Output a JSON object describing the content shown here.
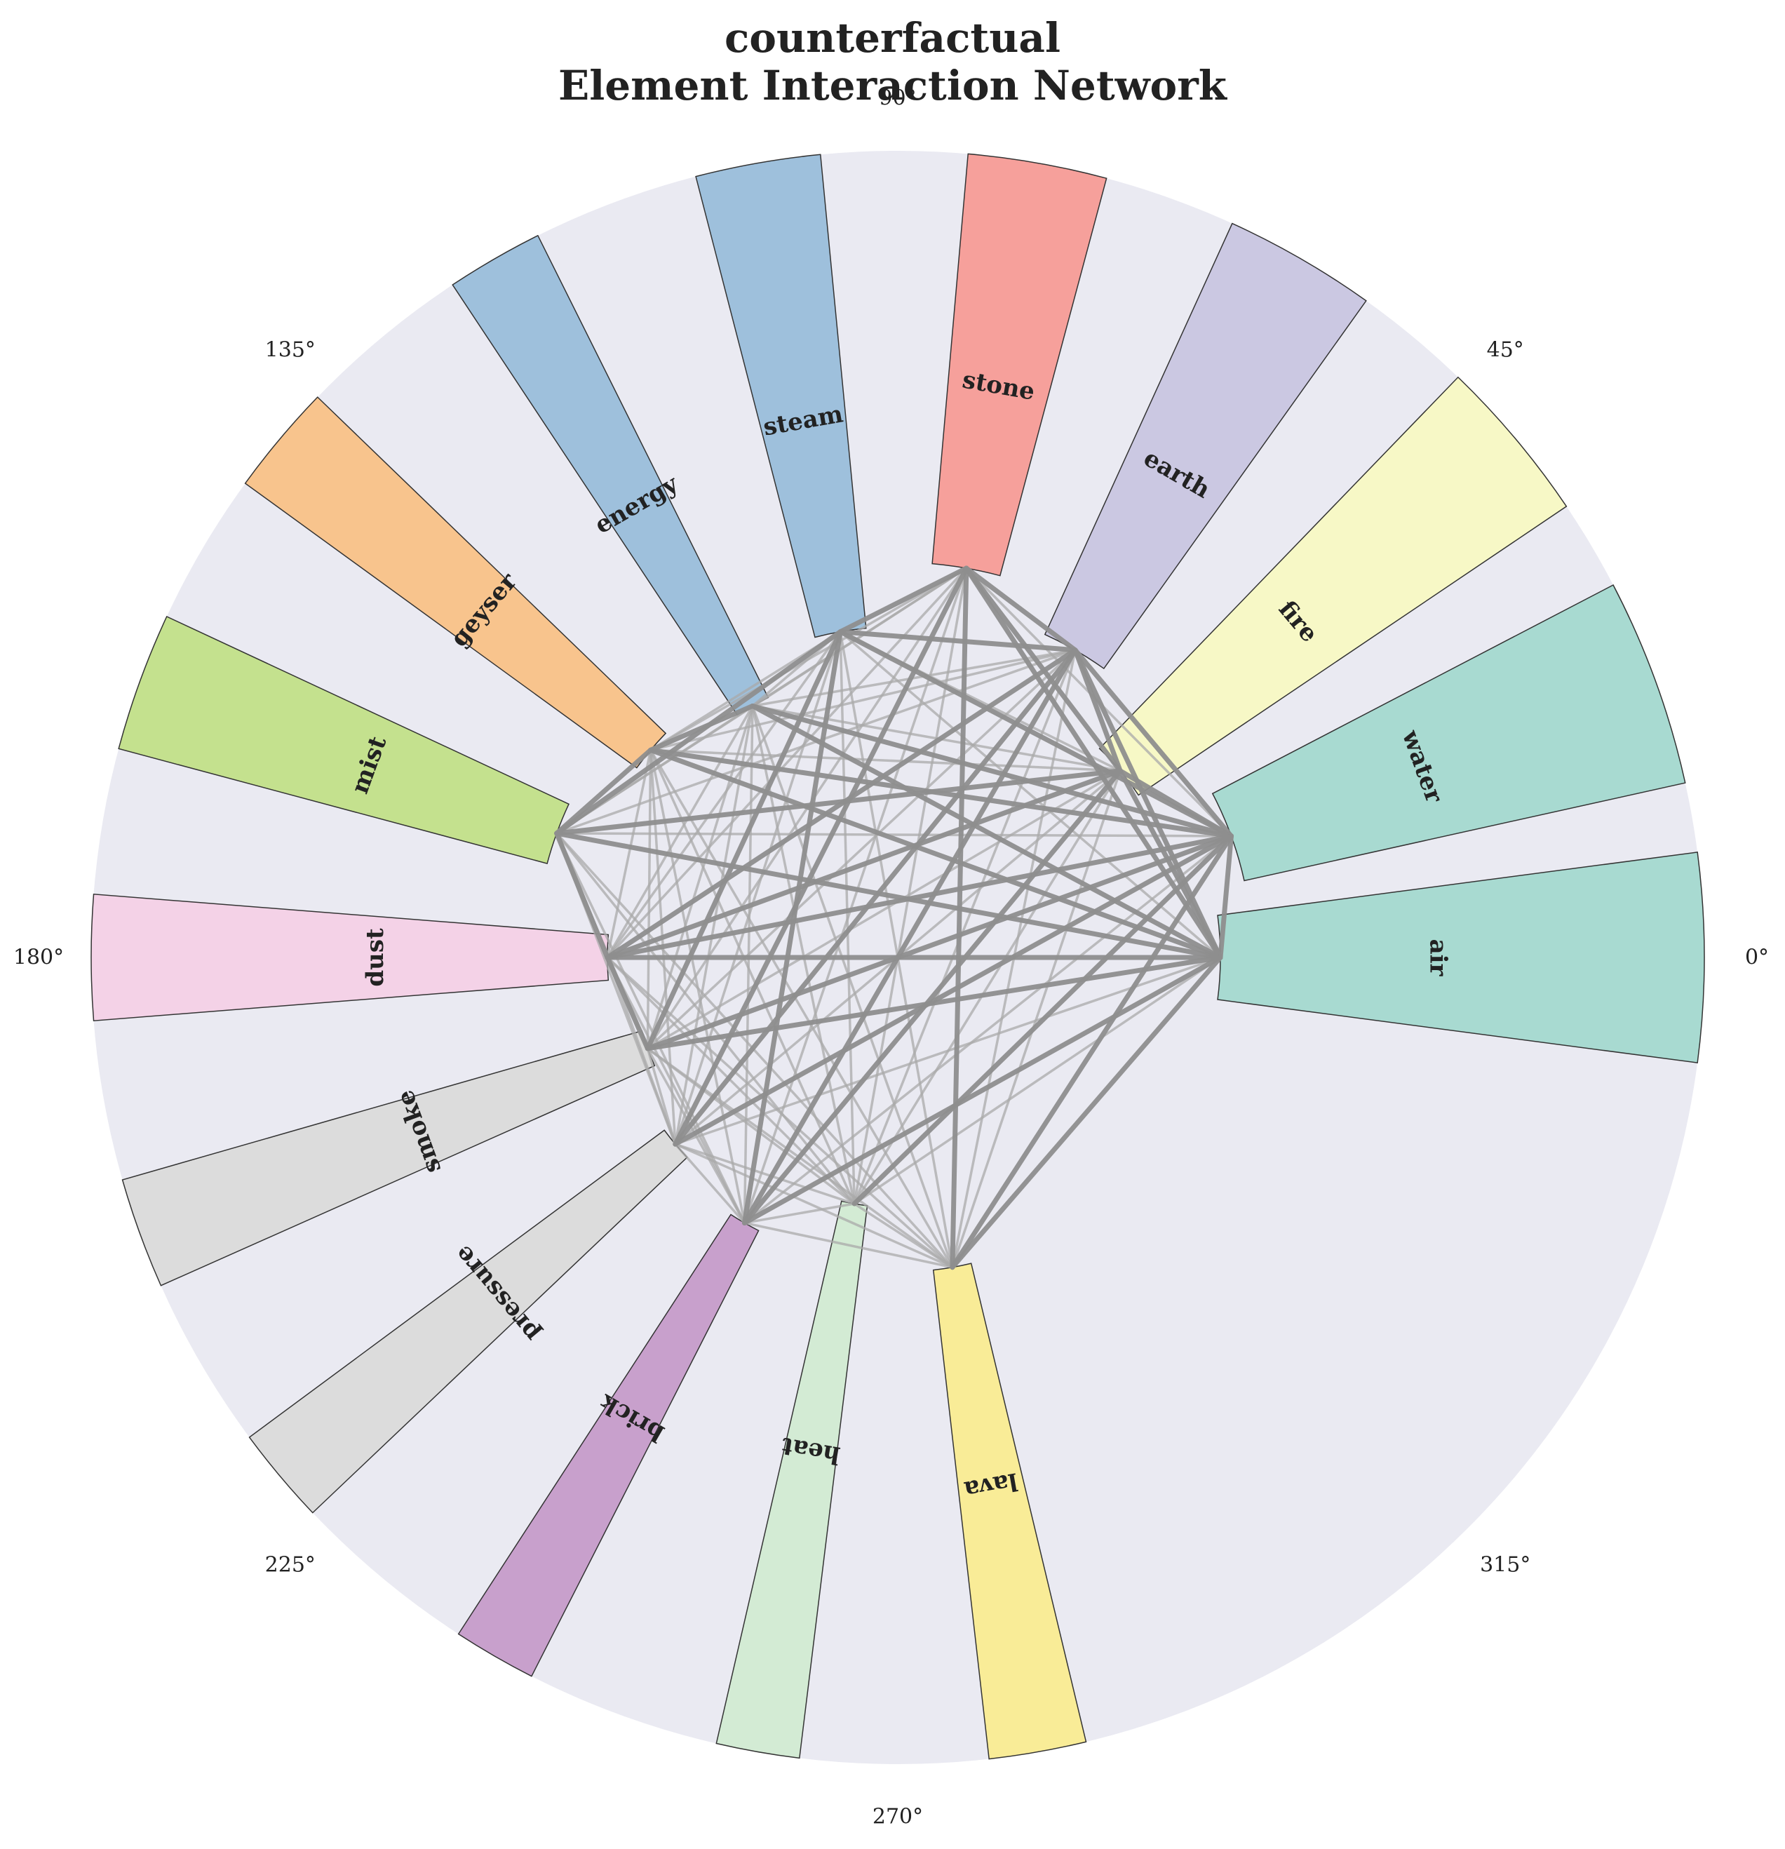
{
  "chart_data": {
    "type": "polar-bar-network",
    "title_line1": "counterfactual",
    "title_line2": "Element Interaction Network",
    "angle_ticks": [
      "0°",
      "45°",
      "90°",
      "135°",
      "180°",
      "225°",
      "270°",
      "315°"
    ],
    "r_max": 10,
    "grid": false,
    "elements": [
      {
        "name": "air",
        "angle_deg": 0,
        "value": 4.0,
        "width_deg": 15,
        "color": "#a8dad1"
      },
      {
        "name": "water",
        "angle_deg": 20,
        "value": 4.4,
        "width_deg": 15,
        "color": "#a8dad1"
      },
      {
        "name": "fire",
        "angle_deg": 40,
        "value": 3.6,
        "width_deg": 12,
        "color": "#f7f8c6"
      },
      {
        "name": "earth",
        "angle_deg": 60,
        "value": 4.4,
        "width_deg": 11,
        "color": "#cbc8e2"
      },
      {
        "name": "stone",
        "angle_deg": 80,
        "value": 4.9,
        "width_deg": 10,
        "color": "#f6a09b"
      },
      {
        "name": "steam",
        "angle_deg": 100,
        "value": 4.1,
        "width_deg": 9,
        "color": "#9ec0dc"
      },
      {
        "name": "energy",
        "angle_deg": 120,
        "value": 3.6,
        "width_deg": 7,
        "color": "#9ec0dc"
      },
      {
        "name": "geyser",
        "angle_deg": 140,
        "value": 4.0,
        "width_deg": 8,
        "color": "#f8c48d"
      },
      {
        "name": "mist",
        "angle_deg": 160,
        "value": 4.5,
        "width_deg": 10,
        "color": "#c4e18e"
      },
      {
        "name": "dust",
        "angle_deg": 180,
        "value": 3.6,
        "width_deg": 9,
        "color": "#f4d2e7"
      },
      {
        "name": "smoke",
        "angle_deg": 200,
        "value": 3.3,
        "width_deg": 8,
        "color": "#dcdcdc"
      },
      {
        "name": "pressure",
        "angle_deg": 220,
        "value": 3.6,
        "width_deg": 7,
        "color": "#dcdcdc"
      },
      {
        "name": "brick",
        "angle_deg": 240,
        "value": 3.8,
        "width_deg": 6,
        "color": "#c8a0cc"
      },
      {
        "name": "heat",
        "angle_deg": 260,
        "value": 3.1,
        "width_deg": 6,
        "color": "#d3ebd4"
      },
      {
        "name": "lava",
        "angle_deg": 280,
        "value": 3.9,
        "width_deg": 7,
        "color": "#f9ec97"
      }
    ],
    "strong_edges": [
      [
        0,
        1
      ],
      [
        0,
        2
      ],
      [
        0,
        3
      ],
      [
        0,
        4
      ],
      [
        0,
        6
      ],
      [
        0,
        7
      ],
      [
        0,
        8
      ],
      [
        0,
        9
      ],
      [
        0,
        10
      ],
      [
        0,
        12
      ],
      [
        0,
        14
      ],
      [
        1,
        2
      ],
      [
        1,
        3
      ],
      [
        1,
        5
      ],
      [
        1,
        6
      ],
      [
        1,
        7
      ],
      [
        1,
        9
      ],
      [
        1,
        10
      ],
      [
        1,
        11
      ],
      [
        1,
        13
      ],
      [
        1,
        14
      ],
      [
        2,
        3
      ],
      [
        2,
        4
      ],
      [
        2,
        8
      ],
      [
        2,
        9
      ],
      [
        2,
        12
      ],
      [
        3,
        4
      ],
      [
        3,
        5
      ],
      [
        3,
        9
      ],
      [
        3,
        11
      ],
      [
        3,
        12
      ],
      [
        4,
        5
      ],
      [
        4,
        11
      ],
      [
        4,
        14
      ],
      [
        5,
        8
      ],
      [
        5,
        10
      ],
      [
        5,
        12
      ],
      [
        6,
        7
      ],
      [
        7,
        8
      ],
      [
        8,
        9
      ],
      [
        9,
        10
      ]
    ],
    "weak_edges": [
      [
        0,
        5
      ],
      [
        0,
        11
      ],
      [
        0,
        13
      ],
      [
        1,
        4
      ],
      [
        1,
        8
      ],
      [
        1,
        12
      ],
      [
        2,
        5
      ],
      [
        2,
        6
      ],
      [
        2,
        7
      ],
      [
        2,
        10
      ],
      [
        2,
        11
      ],
      [
        2,
        13
      ],
      [
        2,
        14
      ],
      [
        3,
        6
      ],
      [
        3,
        7
      ],
      [
        3,
        8
      ],
      [
        3,
        10
      ],
      [
        3,
        13
      ],
      [
        3,
        14
      ],
      [
        4,
        6
      ],
      [
        4,
        7
      ],
      [
        4,
        8
      ],
      [
        4,
        9
      ],
      [
        4,
        10
      ],
      [
        4,
        12
      ],
      [
        4,
        13
      ],
      [
        5,
        6
      ],
      [
        5,
        7
      ],
      [
        5,
        9
      ],
      [
        5,
        11
      ],
      [
        5,
        13
      ],
      [
        5,
        14
      ],
      [
        6,
        8
      ],
      [
        6,
        9
      ],
      [
        6,
        10
      ],
      [
        6,
        11
      ],
      [
        6,
        12
      ],
      [
        6,
        13
      ],
      [
        6,
        14
      ],
      [
        7,
        9
      ],
      [
        7,
        10
      ],
      [
        7,
        11
      ],
      [
        7,
        12
      ],
      [
        7,
        13
      ],
      [
        7,
        14
      ],
      [
        8,
        10
      ],
      [
        8,
        11
      ],
      [
        8,
        12
      ],
      [
        8,
        13
      ],
      [
        8,
        14
      ],
      [
        9,
        11
      ],
      [
        9,
        12
      ],
      [
        9,
        13
      ],
      [
        9,
        14
      ],
      [
        10,
        11
      ],
      [
        10,
        12
      ],
      [
        10,
        13
      ],
      [
        10,
        14
      ],
      [
        11,
        12
      ],
      [
        11,
        13
      ],
      [
        11,
        14
      ],
      [
        12,
        13
      ],
      [
        12,
        14
      ],
      [
        13,
        14
      ]
    ]
  }
}
